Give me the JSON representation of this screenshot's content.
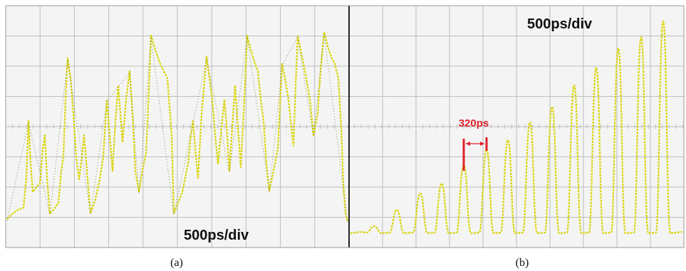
{
  "panels": [
    {
      "label": "500ps/div",
      "caption": "(a)"
    },
    {
      "label": "500ps/div",
      "annotation": "320ps",
      "caption": "(b)"
    }
  ]
}
